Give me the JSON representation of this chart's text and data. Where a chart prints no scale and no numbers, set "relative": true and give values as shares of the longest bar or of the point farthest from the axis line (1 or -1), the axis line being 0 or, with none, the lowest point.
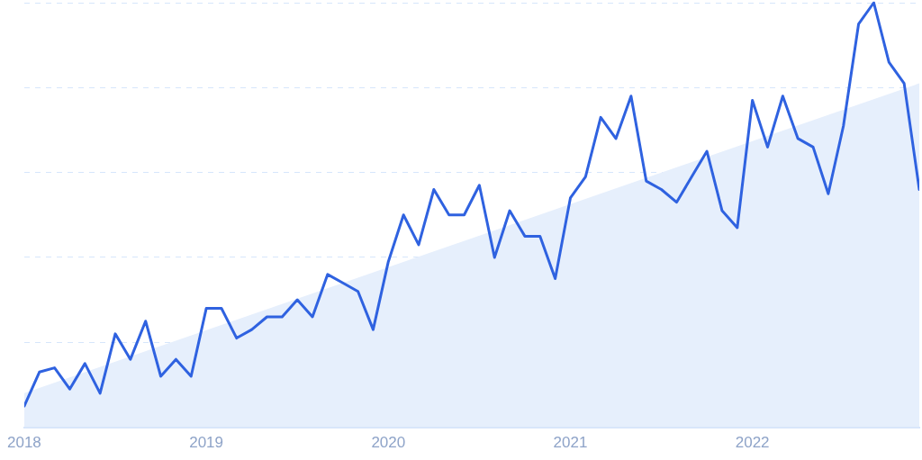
{
  "chart_data": {
    "type": "line",
    "relative": true,
    "grid": "y",
    "legend": false,
    "marker": "none",
    "line_style": "solid",
    "x": [
      "2018-01",
      "2018-02",
      "2018-03",
      "2018-04",
      "2018-05",
      "2018-06",
      "2018-07",
      "2018-08",
      "2018-09",
      "2018-10",
      "2018-11",
      "2018-12",
      "2019-01",
      "2019-02",
      "2019-03",
      "2019-04",
      "2019-05",
      "2019-06",
      "2019-07",
      "2019-08",
      "2019-09",
      "2019-10",
      "2019-11",
      "2019-12",
      "2020-01",
      "2020-02",
      "2020-03",
      "2020-04",
      "2020-05",
      "2020-06",
      "2020-07",
      "2020-08",
      "2020-09",
      "2020-10",
      "2020-11",
      "2020-12",
      "2021-01",
      "2021-02",
      "2021-03",
      "2021-04",
      "2021-05",
      "2021-06",
      "2021-07",
      "2021-08",
      "2021-09",
      "2021-10",
      "2021-11",
      "2021-12",
      "2022-01",
      "2022-02",
      "2022-03",
      "2022-04",
      "2022-05",
      "2022-06",
      "2022-07",
      "2022-08",
      "2022-09",
      "2022-10",
      "2022-11",
      "2022-12"
    ],
    "xlim": [
      "2018-01",
      "2022-12"
    ],
    "xticks": [
      "2018",
      "2019",
      "2020",
      "2021",
      "2022"
    ],
    "series": [
      {
        "color": "#2f62e0",
        "values": [
          0.05,
          0.13,
          0.14,
          0.09,
          0.15,
          0.08,
          0.22,
          0.16,
          0.25,
          0.12,
          0.16,
          0.12,
          0.28,
          0.28,
          0.21,
          0.23,
          0.26,
          0.26,
          0.3,
          0.26,
          0.36,
          0.34,
          0.32,
          0.23,
          0.39,
          0.5,
          0.43,
          0.56,
          0.5,
          0.5,
          0.57,
          0.4,
          0.51,
          0.45,
          0.45,
          0.35,
          0.54,
          0.59,
          0.73,
          0.68,
          0.78,
          0.58,
          0.56,
          0.53,
          0.59,
          0.65,
          0.51,
          0.47,
          0.77,
          0.66,
          0.78,
          0.68,
          0.66,
          0.55,
          0.71,
          0.95,
          1,
          0.86,
          0.81,
          0.56
        ]
      },
      {
        "type": "area",
        "color": "#e6effc",
        "x": [
          "2018-01",
          "2022-12"
        ],
        "values": [
          0.08,
          0.81
        ]
      }
    ]
  }
}
